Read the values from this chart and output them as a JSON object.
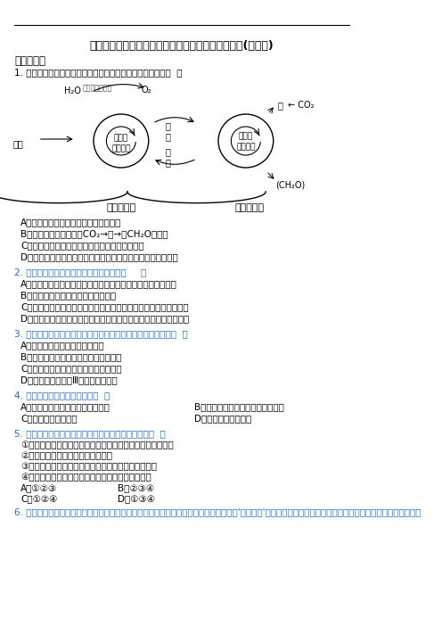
{
  "title": "湖南省醴陵二中、醴陵四中高一上学期生物期末试卷(有答案)",
  "section1": "一、单选题",
  "q1": "1. 下图是绿色植物光合作用过程的图解，相关叙述错误的是（  ）",
  "q1_options": [
    "A．光反应发生在叶绿体的类囊体薄膜上",
    "B．暗反应的物质变化为CO₂→甲→（CH₂O）或乙",
    "C．突然停止光照，甲的含量减少，乙的含量增多",
    "D．光合作用的能量变化是将光能转变成有机物中稳定的化学能"
  ],
  "q2": "2. 下列关于光学显微镜的说法，错误的是（     ）",
  "q2_options": [
    "A．显微镜的放大倍数等于目镜放大倍数与物镜放大倍数的乘积",
    "B．观察装片时，不能随意移动显微镜",
    "C．要将视野右下方的观察目标移至视野中央，应将装片向右下方移",
    "D．在显微镜下观察透明材料时，应该用较强的光源，用较大的光圈"
  ],
  "q3": "3. 肠腺细胞能够分泌脂肪酶等多种消化酶，下列叙述正确的是（  ）",
  "q3_options": [
    "A．脂肪酶的分泌与高尔基体有关",
    "B．合成和分泌脂肪酶的过程不消耗能量",
    "C．肠腺细胞中含量最多的化合物是脂肪",
    "D．脂肪酶能被苏丹Ⅲ染液染成橘黄色"
  ],
  "q4": "4. 下列关于酶的叙述正确的是（  ）",
  "q4_options_left": [
    "A．酶与无机催化剂的催化效率相同",
    "C．酶的作用条件温和"
  ],
  "q4_options_right": [
    "B．催化生化反应前后酶的性质改变",
    "D．所有酶都是蛋白质"
  ],
  "q5": "5. 下列实例中，能说明生命活动离不开细胞组织的是（  ）",
  "q5_items": [
    "①流感患者打喷嚏时，会有大量流感病毒随飞沫散布于空气中",
    "②手碰硬物有著水的电水会造造短回",
    "③体操运动员完成单杠动作离不开肌细胞的收缩和舒张",
    "④大肠杆菌在生长过程中，细胞不断地进行分裂增殖"
  ],
  "q5_options": [
    "A．①②③",
    "B．②③④",
    "C．①②④",
    "D．①③④"
  ],
  "q6": "6. 古生物学家推测：被原始核生物吞噬的放藻有些未被消化，反面能依靠原始真核生物的'生活废物'制造营养物质，逐渐进化为叶绿体。下列有关该进化不正确的是"
}
